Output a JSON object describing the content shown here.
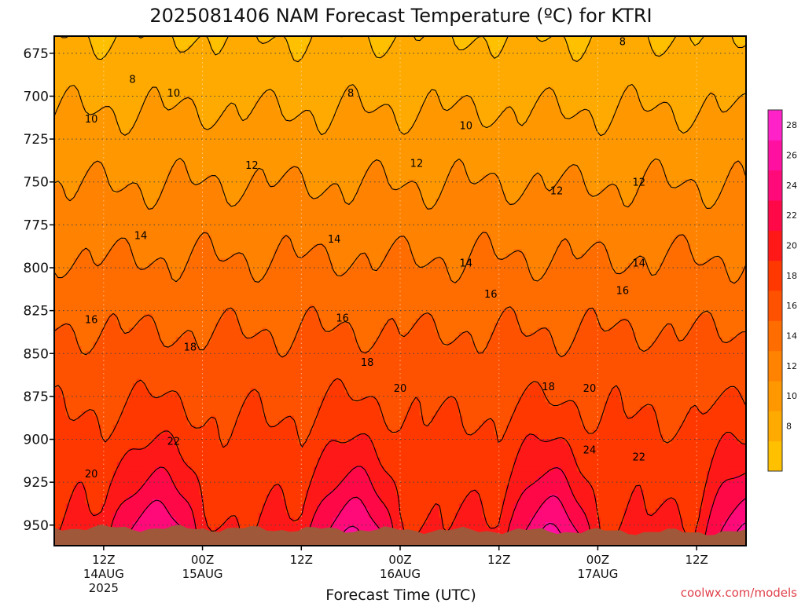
{
  "chart_data": {
    "type": "heatmap",
    "title": "2025081406 NAM Forecast Temperature (ºC) for KTRI",
    "xlabel": "Forecast Time (UTC)",
    "ylabel": "",
    "y_axis": {
      "ticks": [
        "675",
        "700",
        "725",
        "750",
        "775",
        "800",
        "825",
        "850",
        "875",
        "900",
        "925",
        "950"
      ],
      "range": [
        962,
        665
      ],
      "grid": "dotted"
    },
    "x_axis": {
      "ticks": [
        {
          "line1": "12Z",
          "line2": "14AUG",
          "line3": "2025"
        },
        {
          "line1": "00Z",
          "line2": "15AUG",
          "line3": ""
        },
        {
          "line1": "12Z",
          "line2": "",
          "line3": ""
        },
        {
          "line1": "00Z",
          "line2": "16AUG",
          "line3": ""
        },
        {
          "line1": "12Z",
          "line2": "",
          "line3": ""
        },
        {
          "line1": "00Z",
          "line2": "17AUG",
          "line3": ""
        },
        {
          "line1": "12Z",
          "line2": "",
          "line3": ""
        }
      ],
      "range_hours": [
        6,
        90
      ],
      "tick_hours": [
        12,
        24,
        36,
        48,
        60,
        72,
        84
      ],
      "grid": "dotted"
    },
    "colorbar": {
      "labels": [
        "8",
        "10",
        "12",
        "14",
        "16",
        "18",
        "20",
        "22",
        "24",
        "26",
        "28"
      ],
      "levels": [
        6,
        8,
        10,
        12,
        14,
        16,
        18,
        20,
        22,
        24,
        26,
        28,
        30
      ],
      "colors": [
        "#ffc000",
        "#ffaa00",
        "#ff9800",
        "#ff8200",
        "#ff6c00",
        "#ff5200",
        "#ff3800",
        "#ff1818",
        "#ff0848",
        "#ff0a78",
        "#ff10a0",
        "#ff22c8"
      ]
    },
    "contour_labels": [
      {
        "text": "8",
        "hour": 15.5,
        "p": 690
      },
      {
        "text": "8",
        "hour": 42,
        "p": 698
      },
      {
        "text": "8",
        "hour": 75,
        "p": 668
      },
      {
        "text": "10",
        "hour": 10.5,
        "p": 713
      },
      {
        "text": "10",
        "hour": 20.5,
        "p": 698
      },
      {
        "text": "10",
        "hour": 56,
        "p": 717
      },
      {
        "text": "12",
        "hour": 30,
        "p": 740
      },
      {
        "text": "12",
        "hour": 50,
        "p": 739
      },
      {
        "text": "12",
        "hour": 67,
        "p": 755
      },
      {
        "text": "12",
        "hour": 77,
        "p": 750
      },
      {
        "text": "14",
        "hour": 16.5,
        "p": 781
      },
      {
        "text": "14",
        "hour": 40,
        "p": 783
      },
      {
        "text": "14",
        "hour": 56,
        "p": 797
      },
      {
        "text": "14",
        "hour": 77,
        "p": 797
      },
      {
        "text": "16",
        "hour": 10.5,
        "p": 830
      },
      {
        "text": "16",
        "hour": 41,
        "p": 829
      },
      {
        "text": "16",
        "hour": 59,
        "p": 815
      },
      {
        "text": "16",
        "hour": 75,
        "p": 813
      },
      {
        "text": "18",
        "hour": 22.5,
        "p": 846
      },
      {
        "text": "18",
        "hour": 44,
        "p": 855
      },
      {
        "text": "18",
        "hour": 66,
        "p": 869
      },
      {
        "text": "20",
        "hour": 48,
        "p": 870
      },
      {
        "text": "20",
        "hour": 71,
        "p": 870
      },
      {
        "text": "20",
        "hour": 10.5,
        "p": 920
      },
      {
        "text": "22",
        "hour": 20.5,
        "p": 901
      },
      {
        "text": "22",
        "hour": 77,
        "p": 910
      },
      {
        "text": "24",
        "hour": 71,
        "p": 906
      }
    ]
  },
  "credit": "coolwx.com/models",
  "colors": {
    "terrain": "#a0583a",
    "contour": "#000000",
    "grid": "#444444"
  }
}
